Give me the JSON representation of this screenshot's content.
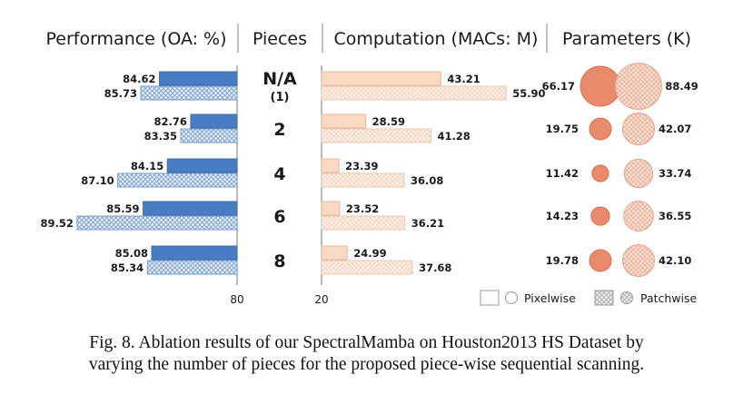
{
  "headers": {
    "performance": "Performance (OA: %)",
    "pieces": "Pieces",
    "computation": "Computation (MACs: M)",
    "parameters": "Parameters (K)"
  },
  "legend": {
    "pixelwise": "Pixelwise",
    "patchwise": "Patchwise"
  },
  "axis_ticks": {
    "performance": "80",
    "computation": "20"
  },
  "caption": {
    "line1": "Fig. 8.  Ablation results of our SpectralMamba on Houston2013 HS Dataset by",
    "line2": "varying the number of pieces for the proposed piece-wise sequential scanning."
  },
  "colors": {
    "perf_pixel": "#4a7cc4",
    "perf_patch": "#cfe0f4",
    "comp_pixel": "#fbd9c4",
    "comp_patch": "#fdf1e9",
    "param_pixel": "#ea8a6c",
    "param_patch": "#f6cbbb"
  },
  "chart_data": [
    {
      "type": "bar",
      "title": "Performance (OA: %)",
      "categories": [
        "N/A (1)",
        "2",
        "4",
        "6",
        "8"
      ],
      "series": [
        {
          "name": "Pixelwise",
          "values": [
            84.62,
            82.76,
            84.15,
            85.59,
            85.08
          ]
        },
        {
          "name": "Patchwise",
          "values": [
            85.73,
            83.35,
            87.1,
            89.52,
            85.34
          ]
        }
      ],
      "xlim": [
        80,
        90
      ],
      "orientation": "horizontal-reversed"
    },
    {
      "type": "bar",
      "title": "Computation (MACs: M)",
      "categories": [
        "N/A (1)",
        "2",
        "4",
        "6",
        "8"
      ],
      "series": [
        {
          "name": "Pixelwise",
          "values": [
            43.21,
            28.59,
            23.39,
            23.52,
            24.99
          ]
        },
        {
          "name": "Patchwise",
          "values": [
            55.9,
            41.28,
            36.08,
            36.21,
            37.68
          ]
        }
      ],
      "xlim": [
        20,
        60
      ],
      "orientation": "horizontal"
    },
    {
      "type": "scatter",
      "title": "Parameters (K)",
      "categories": [
        "N/A (1)",
        "2",
        "4",
        "6",
        "8"
      ],
      "series": [
        {
          "name": "Pixelwise",
          "values": [
            66.17,
            19.75,
            11.42,
            14.23,
            19.78
          ]
        },
        {
          "name": "Patchwise",
          "values": [
            88.49,
            42.07,
            33.74,
            36.55,
            42.1
          ]
        }
      ],
      "marker_size_encodes": "value"
    }
  ],
  "pieces_labels": [
    {
      "main": "N/A",
      "sub": "(1)"
    },
    {
      "main": "2",
      "sub": ""
    },
    {
      "main": "4",
      "sub": ""
    },
    {
      "main": "6",
      "sub": ""
    },
    {
      "main": "8",
      "sub": ""
    }
  ]
}
